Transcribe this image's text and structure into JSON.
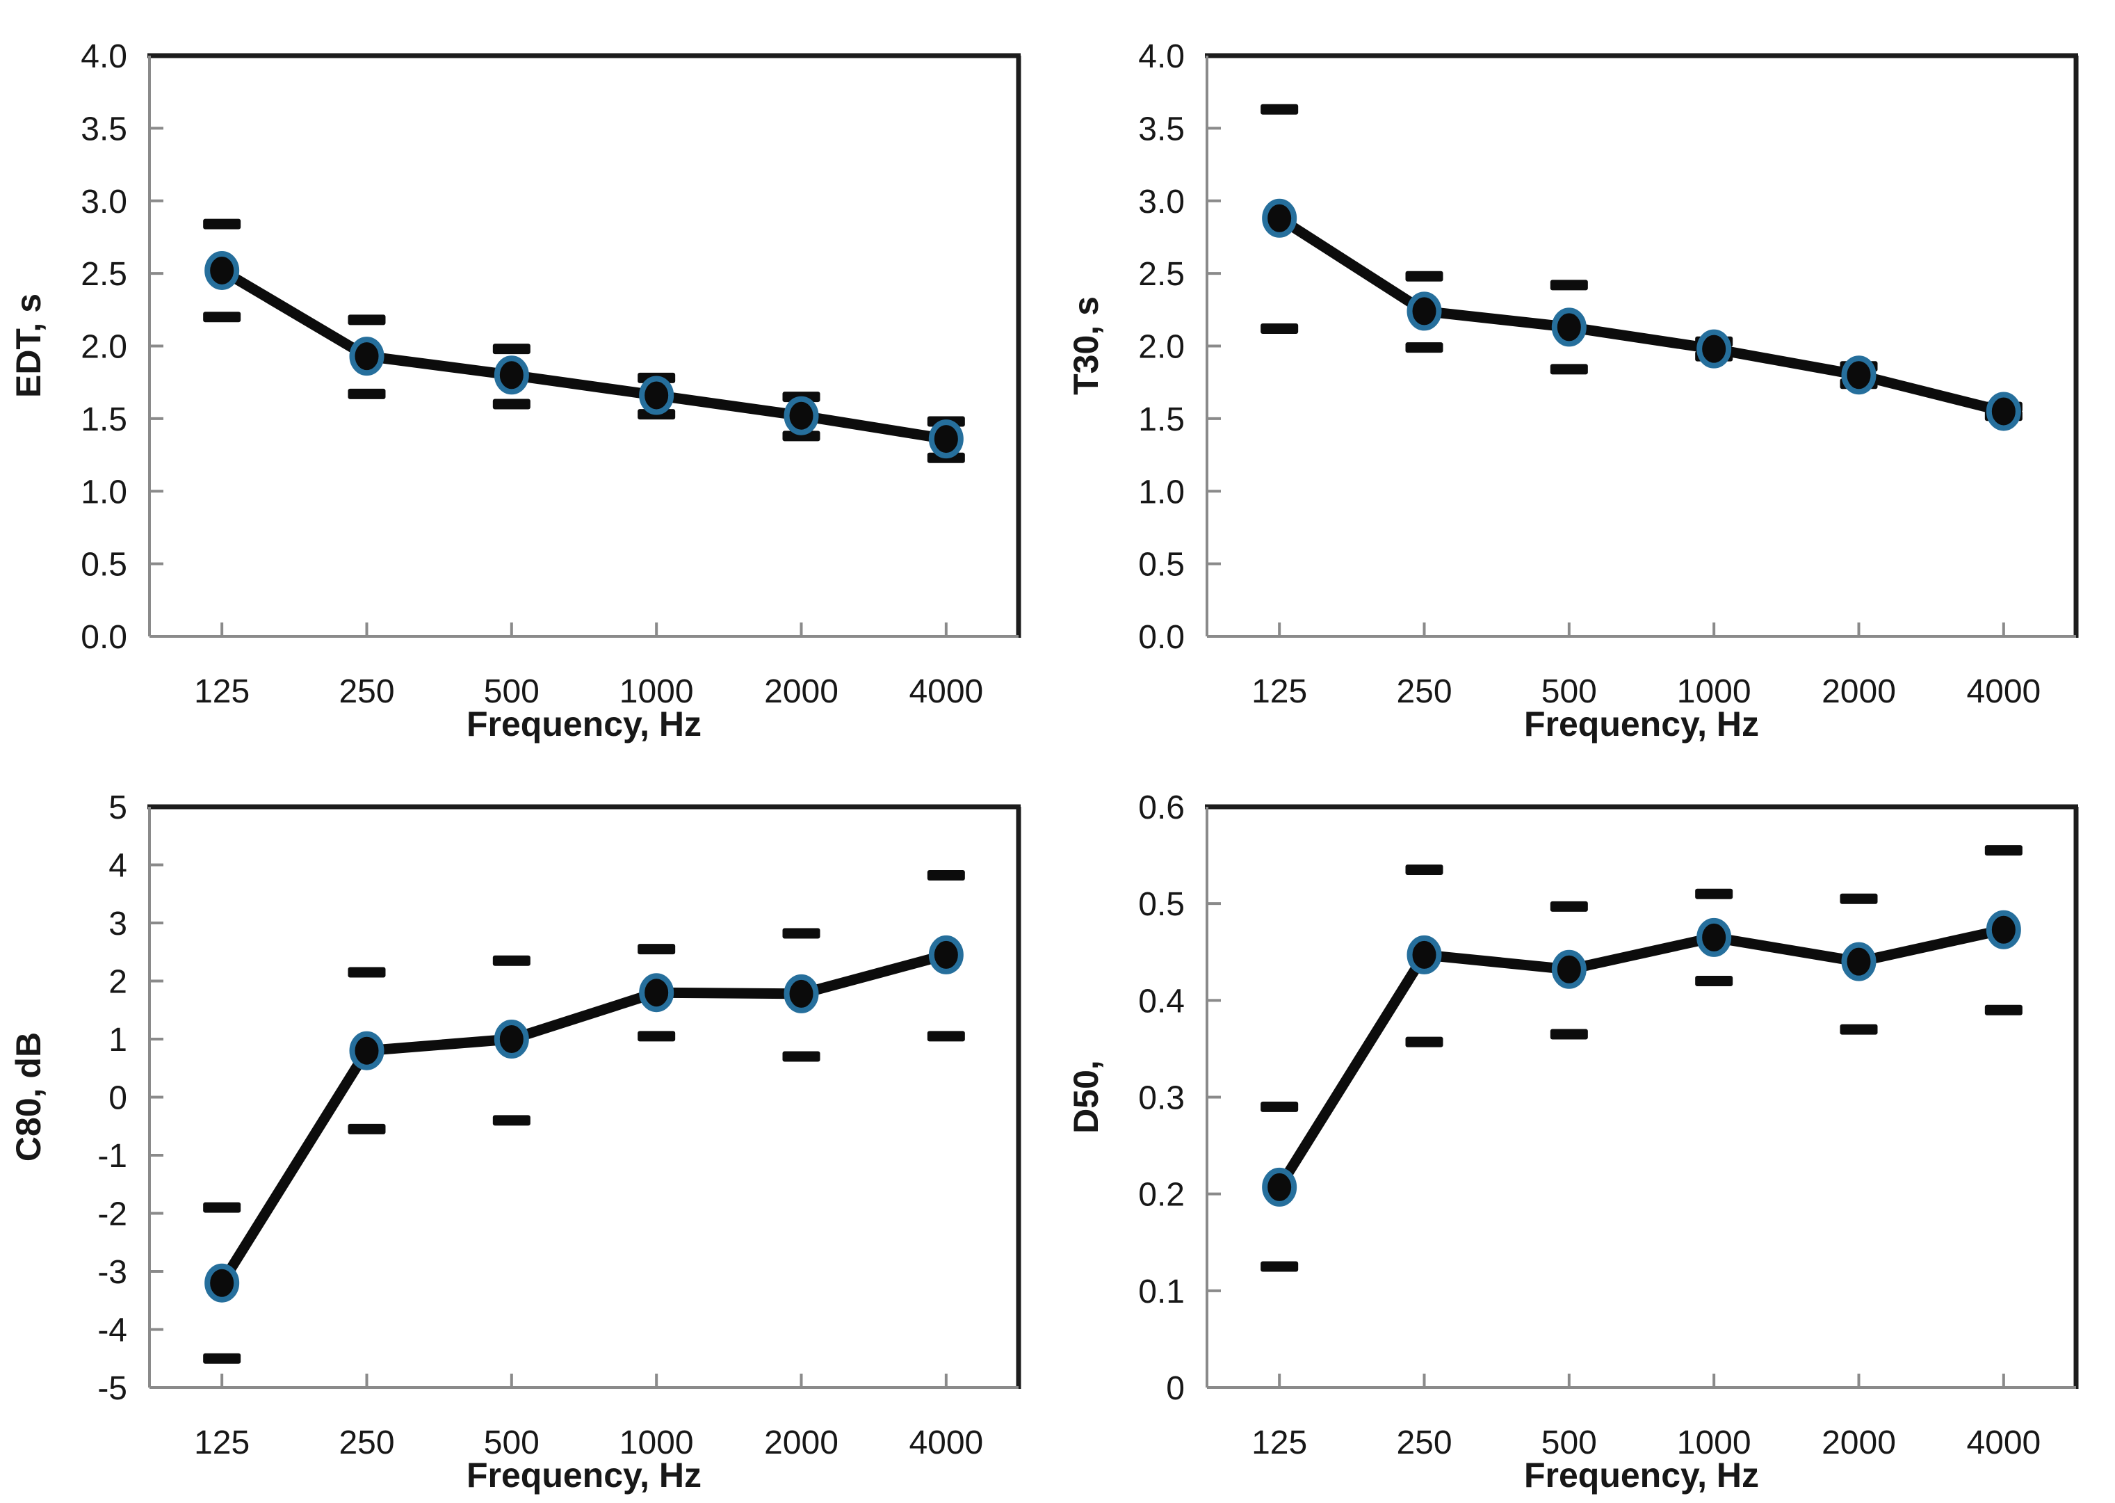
{
  "colors": {
    "line": "#0c0c0c",
    "marker_fill": "#0b0b0b",
    "marker_ring": "#266f9c",
    "error_bar": "#0c0c0c",
    "axis": "#8a8a8a",
    "plot_border": "#1c1c1c",
    "text": "#171717",
    "background": "#ffffff"
  },
  "chart_data": [
    {
      "type": "line",
      "id": "edt",
      "title": "",
      "xlabel": "Frequency, Hz",
      "ylabel": "EDT, s",
      "categories": [
        "125",
        "250",
        "500",
        "1000",
        "2000",
        "4000"
      ],
      "values": [
        2.52,
        1.93,
        1.8,
        1.66,
        1.52,
        1.36
      ],
      "error_upper": [
        2.84,
        2.18,
        1.98,
        1.78,
        1.65,
        1.48
      ],
      "error_lower": [
        2.2,
        1.67,
        1.6,
        1.53,
        1.38,
        1.23
      ],
      "ylim": [
        0,
        4
      ],
      "ytick_labels": [
        "4.0",
        "3.5",
        "3.0",
        "2.5",
        "2.0",
        "1.5",
        "1.0",
        "0.5",
        "0.0"
      ],
      "grid": "off",
      "legend": "none",
      "marker": "filled-circle-blue-ring",
      "error_bar_style": "horizontal-dash"
    },
    {
      "type": "line",
      "id": "t30",
      "title": "",
      "xlabel": "Frequency, Hz",
      "ylabel": "T30, s",
      "categories": [
        "125",
        "250",
        "500",
        "1000",
        "2000",
        "4000"
      ],
      "values": [
        2.88,
        2.24,
        2.13,
        1.98,
        1.8,
        1.55
      ],
      "error_upper": [
        3.63,
        2.48,
        2.42,
        2.03,
        1.86,
        1.58
      ],
      "error_lower": [
        2.12,
        1.99,
        1.84,
        1.93,
        1.74,
        1.52
      ],
      "ylim": [
        0,
        4
      ],
      "ytick_labels": [
        "4.0",
        "3.5",
        "3.0",
        "2.5",
        "2.0",
        "1.5",
        "1.0",
        "0.5",
        "0.0"
      ],
      "grid": "off",
      "legend": "none",
      "marker": "filled-circle-blue-ring",
      "error_bar_style": "horizontal-dash"
    },
    {
      "type": "line",
      "id": "c80",
      "title": "",
      "xlabel": "Frequency, Hz",
      "ylabel": "C80, dB",
      "categories": [
        "125",
        "250",
        "500",
        "1000",
        "2000",
        "4000"
      ],
      "values": [
        -3.2,
        0.8,
        1.0,
        1.8,
        1.78,
        2.45
      ],
      "error_upper": [
        -1.9,
        2.15,
        2.35,
        2.55,
        2.82,
        3.82
      ],
      "error_lower": [
        -4.5,
        -0.55,
        -0.4,
        1.05,
        0.7,
        1.05
      ],
      "ylim": [
        -5,
        5
      ],
      "ytick_labels": [
        "5",
        "4",
        "3",
        "2",
        "1",
        "0",
        "-1",
        "-2",
        "-3",
        "-4",
        "-5"
      ],
      "grid": "off",
      "legend": "none",
      "marker": "filled-circle-blue-ring",
      "error_bar_style": "horizontal-dash"
    },
    {
      "type": "line",
      "id": "d50",
      "title": "",
      "xlabel": "Frequency, Hz",
      "ylabel": "D50,",
      "categories": [
        "125",
        "250",
        "500",
        "1000",
        "2000",
        "4000"
      ],
      "values": [
        0.207,
        0.447,
        0.432,
        0.465,
        0.44,
        0.473
      ],
      "error_upper": [
        0.29,
        0.535,
        0.497,
        0.51,
        0.505,
        0.555
      ],
      "error_lower": [
        0.125,
        0.357,
        0.365,
        0.42,
        0.37,
        0.39
      ],
      "ylim": [
        0,
        0.6
      ],
      "ytick_labels": [
        "0.6",
        "0.5",
        "0.4",
        "0.3",
        "0.2",
        "0.1",
        "0"
      ],
      "grid": "off",
      "legend": "none",
      "marker": "filled-circle-blue-ring",
      "error_bar_style": "horizontal-dash"
    }
  ]
}
